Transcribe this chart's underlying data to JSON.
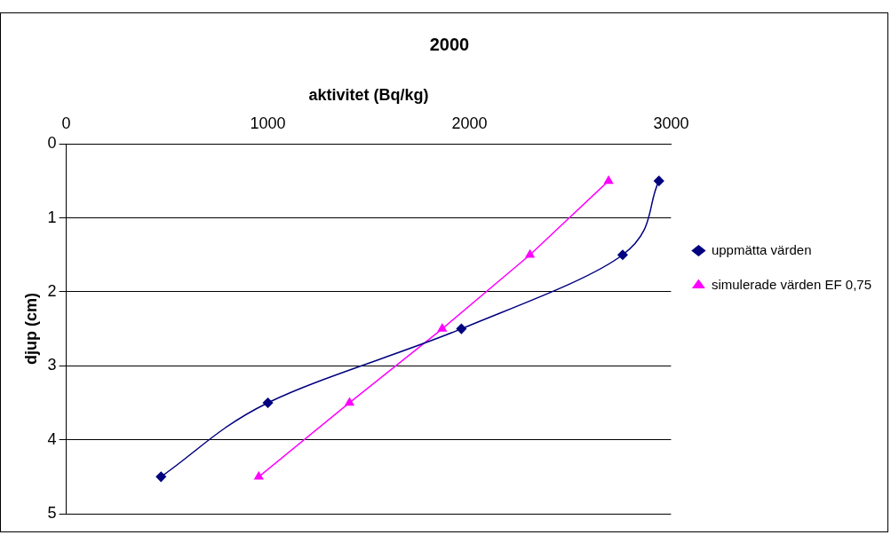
{
  "chart_data": {
    "type": "line",
    "title": "2000",
    "xlabel": "aktivitet (Bq/kg)",
    "ylabel": "djup (cm)",
    "xlim": [
      0,
      3000
    ],
    "xticks": [
      0,
      1000,
      2000,
      3000
    ],
    "ylim": [
      5,
      0
    ],
    "yticks": [
      0,
      1,
      2,
      3,
      4,
      5
    ],
    "grid": "y",
    "legend": "right",
    "series": [
      {
        "name": "uppmätta värden",
        "color": "#000080",
        "marker": "diamond",
        "x": [
          2940,
          2760,
          1960,
          1000,
          470
        ],
        "values": [
          0.5,
          1.5,
          2.5,
          3.5,
          4.5
        ]
      },
      {
        "name": "simulerade värden EF 0,75",
        "color": "#ff00ff",
        "marker": "triangle",
        "x": [
          2690,
          2300,
          1865,
          1405,
          955
        ],
        "values": [
          0.5,
          1.5,
          2.5,
          3.5,
          4.5
        ]
      }
    ]
  }
}
